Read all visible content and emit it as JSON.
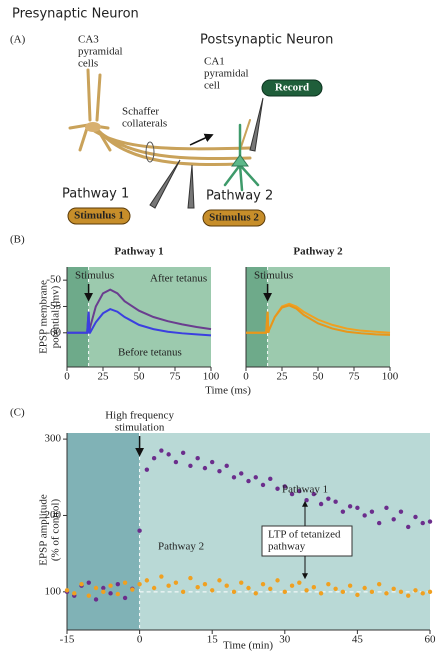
{
  "diagram": {
    "panels": [
      "(A)",
      "(B)",
      "(C)"
    ],
    "presynaptic": "Presynaptic Neuron",
    "postsynaptic": "Postsynaptic Neuron",
    "ca3": [
      "CA3",
      "pyramidal",
      "cells"
    ],
    "ca1": [
      "CA1",
      "pyramidal",
      "cell"
    ],
    "schaffer": [
      "Schaffer",
      "collaterals"
    ],
    "record": "Record",
    "pathway1": "Pathway 1",
    "pathway2": "Pathway 2",
    "stimulus1": "Stimulus 1",
    "stimulus2": "Stimulus 2"
  },
  "chart_data": [
    {
      "type": "line",
      "title": "Pathway 1",
      "annotation": "Stimulus",
      "xlabel": "Time (ms)",
      "ylabel": [
        "EPSP membrane",
        "potential (mv)"
      ],
      "x": [
        0,
        5,
        10,
        14,
        15,
        15.5,
        16,
        20,
        25,
        30,
        35,
        40,
        50,
        60,
        70,
        80,
        90,
        100
      ],
      "series": [
        {
          "name": "After tetanus",
          "color": "#6a3d8f",
          "values": [
            -60,
            -60,
            -60,
            -60,
            -56,
            -60,
            -59,
            -55,
            -52.5,
            -51.8,
            -52.5,
            -54,
            -55.8,
            -57,
            -57.8,
            -58.4,
            -58.9,
            -59.3
          ]
        },
        {
          "name": "Before tetanus",
          "color": "#3b3fe0",
          "values": [
            -60,
            -60,
            -60,
            -60,
            -56,
            -60,
            -60,
            -58,
            -56.3,
            -55.5,
            -56,
            -57,
            -58.5,
            -59.3,
            -59.8,
            -60.1,
            -60.3,
            -60.5
          ]
        }
      ],
      "stimulus_at": 15,
      "background": "#9ccaae",
      "shade": "#6eaa8a",
      "xlim": [
        0,
        100
      ],
      "xticks": [
        0,
        25,
        50,
        75,
        100
      ],
      "ylim": [
        -66.5,
        -47.5
      ],
      "yticks": [
        -50,
        -55,
        -60
      ]
    },
    {
      "type": "line",
      "title": "Pathway 2",
      "annotation": "Stimulus",
      "x": [
        0,
        5,
        10,
        14,
        15,
        15.5,
        16,
        20,
        25,
        30,
        35,
        40,
        50,
        60,
        70,
        80,
        90,
        100
      ],
      "series": [
        {
          "color": "#f0a020",
          "values": [
            -60,
            -60,
            -60,
            -60,
            -56,
            -60,
            -59.5,
            -57,
            -55,
            -54.5,
            -55,
            -56,
            -57.5,
            -58.5,
            -59.2,
            -59.6,
            -59.8,
            -60
          ]
        },
        {
          "color": "#e8961a",
          "values": [
            -60,
            -60,
            -60,
            -60,
            -56,
            -60,
            -59.5,
            -57,
            -55.2,
            -54.8,
            -55.4,
            -56.6,
            -58.2,
            -59.2,
            -59.8,
            -60.1,
            -60.3,
            -60.4
          ]
        }
      ],
      "stimulus_at": 15,
      "background": "#9ccaae",
      "shade": "#6eaa8a",
      "xlim": [
        0,
        100
      ],
      "xticks": [
        0,
        25,
        50,
        75,
        100
      ],
      "ylim": [
        -66.5,
        -47.5
      ]
    },
    {
      "type": "scatter",
      "annotation": [
        "High frequency",
        "stimulation"
      ],
      "ltp_label": [
        "LTP of tetanized",
        "pathway"
      ],
      "xlabel": "Time (min)",
      "ylabel": [
        "EPSP amplitude",
        "(% of control)"
      ],
      "x": [
        -15,
        -13.5,
        -12,
        -10.5,
        -9,
        -7.5,
        -6,
        -4.5,
        -3,
        -1.5,
        0,
        1.5,
        3,
        4.5,
        6,
        7.5,
        9,
        10.5,
        12,
        13.5,
        15,
        16.5,
        18,
        19.5,
        21,
        22.5,
        24,
        25.5,
        27,
        28.5,
        30,
        31.5,
        33,
        34.5,
        36,
        37.5,
        39,
        40.5,
        42,
        43.5,
        45,
        46.5,
        48,
        49.5,
        51,
        52.5,
        54,
        55.5,
        57,
        58.5,
        60
      ],
      "series": [
        {
          "name": "Pathway 1",
          "color": "#6b2d8c",
          "values": [
            100,
            95,
            108,
            112,
            90,
            105,
            98,
            110,
            92,
            104,
            180,
            260,
            275,
            285,
            280,
            270,
            282,
            265,
            275,
            262,
            270,
            258,
            265,
            250,
            255,
            245,
            250,
            240,
            248,
            235,
            238,
            228,
            232,
            220,
            228,
            215,
            222,
            218,
            205,
            212,
            210,
            200,
            205,
            190,
            210,
            195,
            205,
            185,
            198,
            190,
            192
          ]
        },
        {
          "name": "Pathway 2",
          "color": "#f0a020",
          "values": [
            102,
            98,
            110,
            95,
            105,
            100,
            108,
            97,
            112,
            103,
            110,
            115,
            105,
            120,
            108,
            112,
            100,
            118,
            106,
            110,
            102,
            115,
            108,
            100,
            112,
            105,
            98,
            110,
            104,
            115,
            100,
            108,
            112,
            102,
            106,
            98,
            110,
            104,
            100,
            108,
            96,
            105,
            100,
            110,
            98,
            104,
            100,
            95,
            102,
            98,
            100
          ]
        }
      ],
      "baseline": 100,
      "stimulus_at": 0,
      "background": "#b9d9d6",
      "shade": "#80b2b6",
      "xlim": [
        -15,
        60
      ],
      "xticks": [
        -15,
        0,
        15,
        30,
        45,
        60
      ],
      "ylim": [
        50,
        308
      ],
      "yticks": [
        100,
        200,
        300
      ]
    }
  ]
}
